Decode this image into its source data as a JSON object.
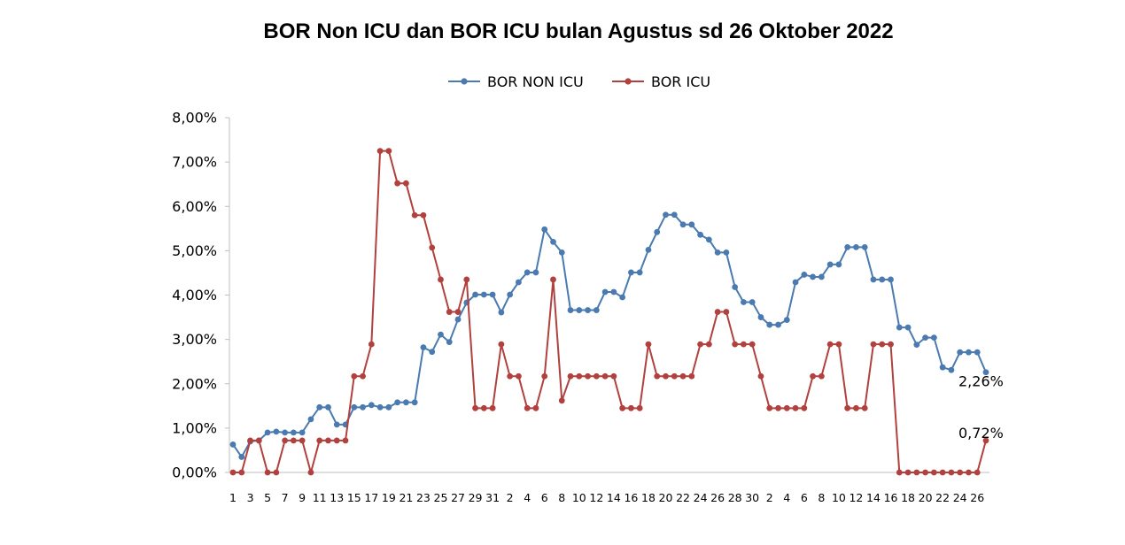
{
  "chart_data": {
    "type": "line",
    "title": "BOR Non ICU dan BOR ICU bulan Agustus sd 26 Oktober 2022",
    "ylim": [
      0,
      8
    ],
    "y_ticks": [
      "0,00%",
      "1,00%",
      "2,00%",
      "3,00%",
      "4,00%",
      "5,00%",
      "6,00%",
      "7,00%",
      "8,00%"
    ],
    "x_labels": [
      "1",
      "3",
      "5",
      "7",
      "9",
      "11",
      "13",
      "15",
      "17",
      "19",
      "21",
      "23",
      "25",
      "27",
      "29",
      "31",
      "2",
      "4",
      "6",
      "8",
      "10",
      "12",
      "14",
      "16",
      "18",
      "20",
      "22",
      "24",
      "26",
      "28",
      "30",
      "2",
      "4",
      "6",
      "8",
      "10",
      "12",
      "14",
      "16",
      "18",
      "20",
      "22",
      "24",
      "26"
    ],
    "legend_position": "top",
    "grid": false,
    "series": [
      {
        "name": "BOR NON ICU",
        "color": "#4a7ab0",
        "end_label": "2,26%",
        "values": [
          0.63,
          0.35,
          0.7,
          0.72,
          0.9,
          0.92,
          0.9,
          0.9,
          0.9,
          1.2,
          1.47,
          1.47,
          1.08,
          1.08,
          1.47,
          1.47,
          1.52,
          1.47,
          1.47,
          1.58,
          1.58,
          1.58,
          2.82,
          2.72,
          3.11,
          2.94,
          3.45,
          3.83,
          4.01,
          4.01,
          4.01,
          3.61,
          4.01,
          4.29,
          4.51,
          4.51,
          5.48,
          5.2,
          4.96,
          3.66,
          3.66,
          3.66,
          3.66,
          4.07,
          4.07,
          3.95,
          4.51,
          4.51,
          5.02,
          5.42,
          5.81,
          5.81,
          5.59,
          5.59,
          5.36,
          5.25,
          4.96,
          4.96,
          4.18,
          3.84,
          3.84,
          3.5,
          3.33,
          3.33,
          3.44,
          4.29,
          4.46,
          4.41,
          4.41,
          4.69,
          4.69,
          5.08,
          5.08,
          5.08,
          4.35,
          4.35,
          4.35,
          3.27,
          3.27,
          2.88,
          3.04,
          3.04,
          2.37,
          2.31,
          2.71,
          2.71,
          2.71,
          2.26
        ]
      },
      {
        "name": "BOR ICU",
        "color": "#b0413e",
        "end_label": "0,72%",
        "values": [
          0,
          0,
          0.72,
          0.72,
          0,
          0,
          0.72,
          0.72,
          0.72,
          0,
          0.72,
          0.72,
          0.72,
          0.72,
          2.17,
          2.17,
          2.89,
          7.25,
          7.25,
          6.52,
          6.52,
          5.8,
          5.8,
          5.07,
          4.35,
          3.62,
          3.62,
          4.35,
          1.45,
          1.45,
          1.45,
          2.89,
          2.17,
          2.17,
          1.45,
          1.45,
          2.17,
          4.35,
          1.62,
          2.17,
          2.17,
          2.17,
          2.17,
          2.17,
          2.17,
          1.45,
          1.45,
          1.45,
          2.89,
          2.17,
          2.17,
          2.17,
          2.17,
          2.17,
          2.89,
          2.89,
          3.62,
          3.62,
          2.89,
          2.89,
          2.89,
          2.17,
          1.45,
          1.45,
          1.45,
          1.45,
          1.45,
          2.17,
          2.17,
          2.89,
          2.89,
          1.45,
          1.45,
          1.45,
          2.89,
          2.89,
          2.89,
          0,
          0,
          0,
          0,
          0,
          0,
          0,
          0,
          0,
          0,
          0.72
        ]
      }
    ]
  }
}
